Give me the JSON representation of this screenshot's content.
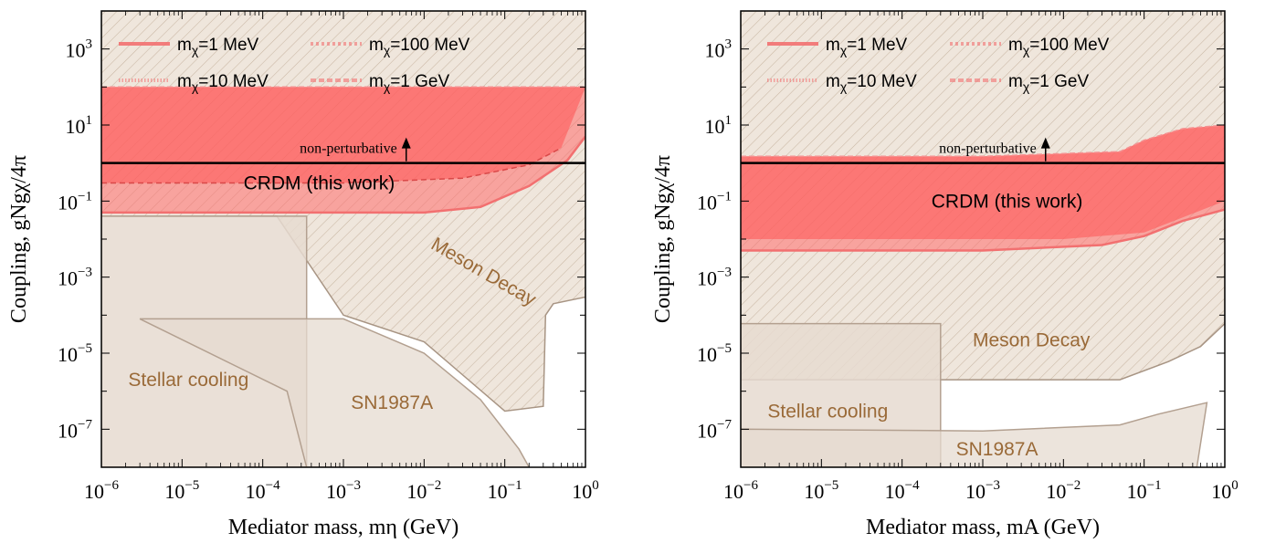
{
  "chart_data": [
    {
      "type": "area",
      "xlabel": "Mediator mass, mη (GeV)",
      "ylabel": "Coupling, gNgχ/4π",
      "xscale": "log",
      "yscale": "log",
      "xlim": [
        1e-06,
        1
      ],
      "ylim": [
        1e-08,
        10000.0
      ],
      "x_ticks": [
        "10^-6",
        "10^-5",
        "10^-4",
        "10^-3",
        "10^-2",
        "10^-1",
        "10^0"
      ],
      "y_ticks": [
        "10^-7",
        "10^-5",
        "10^-3",
        "10^-1",
        "10^1",
        "10^3"
      ],
      "legend": {
        "placement": "top",
        "entries": [
          "mχ=1 MeV",
          "mχ=100 MeV",
          "mχ=10 MeV",
          "mχ=1 GeV"
        ]
      },
      "perturbative_limit": 1,
      "annotations": [
        "non-perturbative",
        "CRDM (this work)",
        "Meson Decay",
        "Stellar cooling",
        "SN1987A"
      ],
      "regions": {
        "crdm": {
          "lower": [
            [
              1e-06,
              0.05
            ],
            [
              0.01,
              0.05
            ],
            [
              0.05,
              0.07
            ],
            [
              0.2,
              0.25
            ],
            [
              0.6,
              1.2
            ],
            [
              1,
              5
            ]
          ],
          "upper": [
            [
              1e-06,
              100
            ],
            [
              1,
              100
            ]
          ],
          "inner_dashed": [
            [
              1e-06,
              0.3
            ],
            [
              0.001,
              0.3
            ],
            [
              0.03,
              0.4
            ],
            [
              0.2,
              0.9
            ],
            [
              0.5,
              2.5
            ]
          ]
        },
        "meson_decay": [
          [
            1e-06,
            0.04
          ],
          [
            0.00015,
            0.04
          ],
          [
            0.001,
            0.0001
          ],
          [
            0.01,
            2e-05
          ],
          [
            0.1,
            3e-07
          ],
          [
            0.3,
            4e-07
          ],
          [
            0.32,
            0.0001
          ],
          [
            0.4,
            0.0002
          ],
          [
            1,
            0.0003
          ],
          [
            1,
            10000.0
          ],
          [
            1e-06,
            10000.0
          ]
        ],
        "stellar_cooling": [
          [
            1e-06,
            1e-08
          ],
          [
            0.00035,
            1e-08
          ],
          [
            0.00035,
            0.04
          ],
          [
            1e-06,
            0.04
          ]
        ],
        "sn1987a": [
          [
            3e-06,
            8e-05
          ],
          [
            0.0003,
            8e-05
          ],
          [
            0.001,
            8e-05
          ],
          [
            0.01,
            1e-05
          ],
          [
            0.05,
            6e-07
          ],
          [
            0.15,
            3e-08
          ],
          [
            0.2,
            1e-08
          ],
          [
            0.00035,
            1e-08
          ],
          [
            0.0002,
            1e-06
          ]
        ]
      }
    },
    {
      "type": "area",
      "xlabel": "Mediator mass, mA (GeV)",
      "ylabel": "Coupling, gNgχ/4π",
      "xscale": "log",
      "yscale": "log",
      "xlim": [
        1e-06,
        1
      ],
      "ylim": [
        1e-08,
        10000.0
      ],
      "x_ticks": [
        "10^-6",
        "10^-5",
        "10^-4",
        "10^-3",
        "10^-2",
        "10^-1",
        "10^0"
      ],
      "y_ticks": [
        "10^-7",
        "10^-5",
        "10^-3",
        "10^-1",
        "10^1",
        "10^3"
      ],
      "legend": {
        "placement": "top",
        "entries": [
          "mχ=1 MeV",
          "mχ=100 MeV",
          "mχ=10 MeV",
          "mχ=1 GeV"
        ]
      },
      "perturbative_limit": 1,
      "annotations": [
        "non-perturbative",
        "CRDM (this work)",
        "Meson Decay",
        "Stellar cooling",
        "SN1987A"
      ],
      "regions": {
        "crdm": {
          "lower": [
            [
              1e-06,
              0.005
            ],
            [
              0.001,
              0.005
            ],
            [
              0.03,
              0.007
            ],
            [
              0.1,
              0.012
            ],
            [
              0.3,
              0.03
            ],
            [
              1,
              0.06
            ]
          ],
          "upper": [
            [
              1e-06,
              1.5
            ],
            [
              0.001,
              1.5
            ],
            [
              0.05,
              2
            ],
            [
              0.1,
              4
            ],
            [
              0.3,
              8
            ],
            [
              1,
              10
            ]
          ],
          "inner_bottom": [
            [
              1e-06,
              0.01
            ],
            [
              0.01,
              0.01
            ],
            [
              0.1,
              0.015
            ],
            [
              1,
              0.1
            ]
          ]
        },
        "meson_decay": [
          [
            1e-06,
            2e-06
          ],
          [
            0.003,
            2e-06
          ],
          [
            0.05,
            2e-06
          ],
          [
            0.2,
            6e-06
          ],
          [
            0.5,
            1.5e-05
          ],
          [
            1,
            6e-05
          ],
          [
            1,
            10000.0
          ],
          [
            1e-06,
            10000.0
          ]
        ],
        "stellar_cooling": [
          [
            1e-06,
            1e-08
          ],
          [
            0.0003,
            1e-08
          ],
          [
            0.0003,
            6e-05
          ],
          [
            1e-06,
            6e-05
          ]
        ],
        "sn1987a": [
          [
            1e-06,
            1e-07
          ],
          [
            0.001,
            9e-08
          ],
          [
            0.05,
            1.3e-07
          ],
          [
            0.15,
            2.5e-07
          ],
          [
            0.6,
            5e-07
          ],
          [
            0.45,
            1e-08
          ],
          [
            1e-06,
            1e-08
          ]
        ]
      }
    }
  ]
}
